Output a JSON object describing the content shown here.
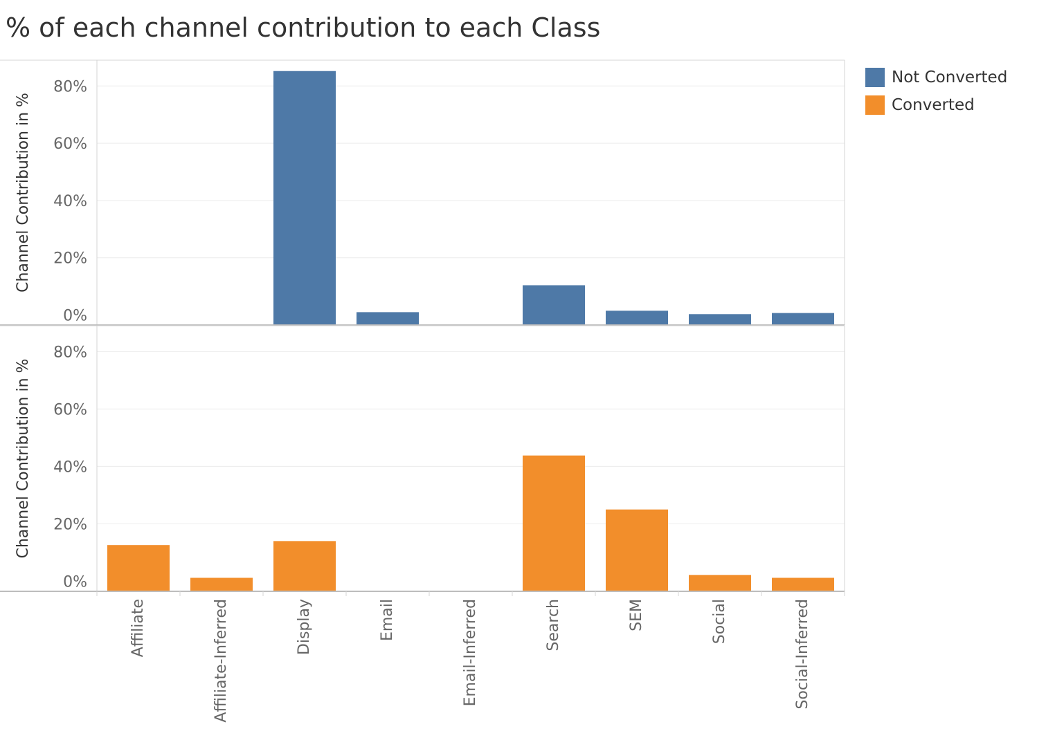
{
  "chart_data": {
    "type": "bar",
    "title": "% of each channel contribution to each Class",
    "categories": [
      "Affiliate",
      "Affiliate-Inferred",
      "Display",
      "Email",
      "Email-Inferred",
      "Search",
      "SEM",
      "Social",
      "Social-Inferred"
    ],
    "ylabel": "Channel Contribution in %",
    "y_ticks": [
      "0%",
      "20%",
      "40%",
      "60%",
      "80%"
    ],
    "ylim": [
      -3.5,
      89
    ],
    "grid": true,
    "legend_position": "top-right",
    "series": [
      {
        "name": "Not Converted",
        "color": "#4e79a7",
        "values": [
          0,
          0,
          85.2,
          1.0,
          0,
          10.4,
          1.5,
          0.3,
          0.7
        ]
      },
      {
        "name": "Converted",
        "color": "#f28e2b",
        "values": [
          12.6,
          1.2,
          14.0,
          0,
          0,
          43.8,
          25.0,
          2.2,
          1.2
        ]
      }
    ]
  }
}
